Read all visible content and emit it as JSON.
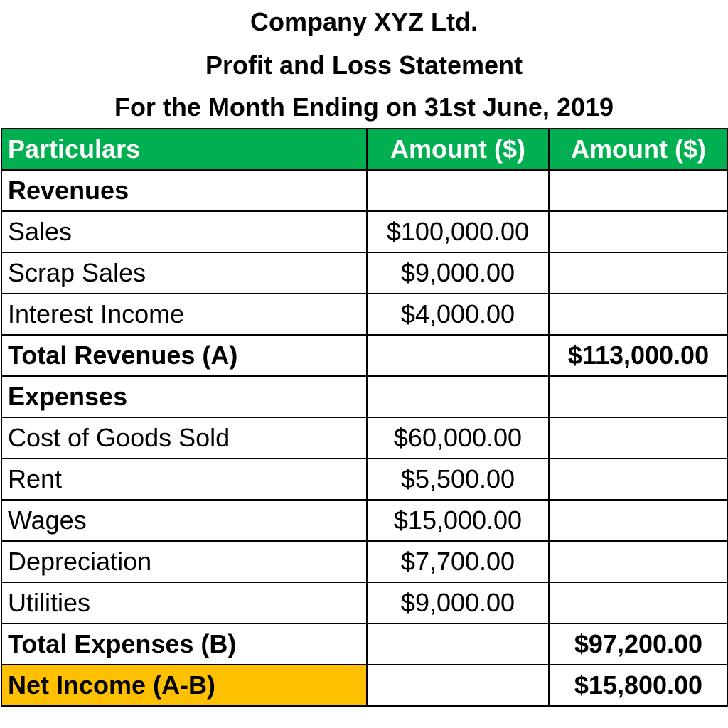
{
  "company_name": "Company XYZ Ltd.",
  "statement_title": "Profit and Loss Statement",
  "period": "For the Month Ending on 31st June, 2019",
  "colors": {
    "header_bg": "#00b050",
    "header_text": "#ffffff",
    "net_income_bg": "#ffc000"
  },
  "table": {
    "headers": [
      "Particulars",
      "Amount ($)",
      "Amount ($)"
    ],
    "rows": [
      {
        "label": "Revenues",
        "amount": "",
        "total": ""
      },
      {
        "label": "Sales",
        "amount": "$100,000.00",
        "total": ""
      },
      {
        "label": "Scrap Sales",
        "amount": "$9,000.00",
        "total": ""
      },
      {
        "label": "Interest Income",
        "amount": "$4,000.00",
        "total": ""
      },
      {
        "label": "Total Revenues (A)",
        "amount": "",
        "total": "$113,000.00"
      },
      {
        "label": "Expenses",
        "amount": "",
        "total": ""
      },
      {
        "label": "Cost of Goods Sold",
        "amount": "$60,000.00",
        "total": ""
      },
      {
        "label": "Rent",
        "amount": "$5,500.00",
        "total": ""
      },
      {
        "label": "Wages",
        "amount": "$15,000.00",
        "total": ""
      },
      {
        "label": "Depreciation",
        "amount": "$7,700.00",
        "total": ""
      },
      {
        "label": "Utilities",
        "amount": "$9,000.00",
        "total": ""
      },
      {
        "label": "Total Expenses (B)",
        "amount": "",
        "total": "$97,200.00"
      },
      {
        "label": "Net Income (A-B)",
        "amount": "",
        "total": "$15,800.00"
      }
    ]
  }
}
